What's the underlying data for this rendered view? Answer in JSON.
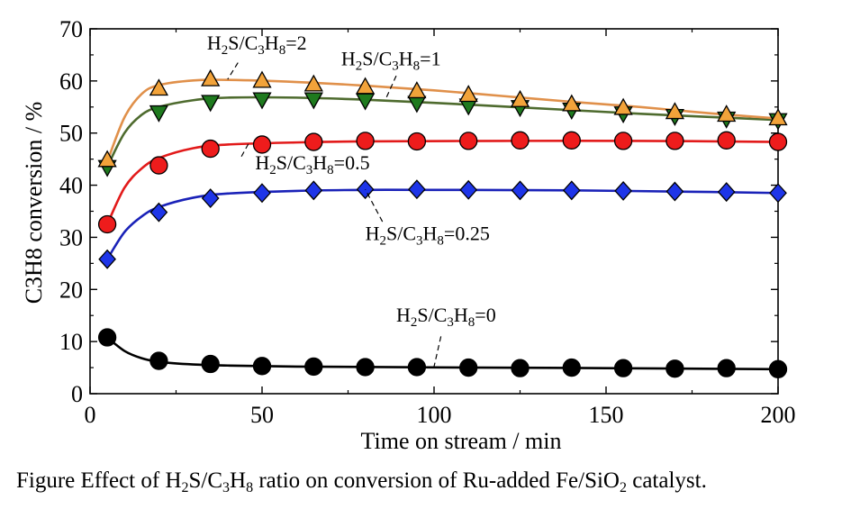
{
  "chart_data": {
    "type": "line",
    "xlabel": "Time on stream / min",
    "ylabel": "C3H8 conversion / %",
    "xlim": [
      0,
      200
    ],
    "ylim": [
      0,
      70
    ],
    "xticks": [
      0,
      50,
      100,
      150,
      200
    ],
    "yticks": [
      0,
      10,
      20,
      30,
      40,
      50,
      60,
      70
    ],
    "grid": false,
    "x": [
      5,
      20,
      35,
      50,
      65,
      80,
      95,
      110,
      125,
      140,
      155,
      170,
      185,
      200
    ],
    "series": [
      {
        "name": "H2S/C3H8=2",
        "label_parts": [
          "H",
          "2",
          "S/C",
          "3",
          "H",
          "8",
          "=2"
        ],
        "marker": "triangle-up",
        "color": "#F2A33A",
        "line_color": "#E0904A",
        "values": [
          44.8,
          58.5,
          60.3,
          60.0,
          59.3,
          58.8,
          58.0,
          57.3,
          56.3,
          55.5,
          54.8,
          54.0,
          53.5,
          52.8
        ],
        "fit": [
          [
            5,
            44.5
          ],
          [
            10,
            53
          ],
          [
            15,
            57.5
          ],
          [
            20,
            59.2
          ],
          [
            30,
            60.1
          ],
          [
            40,
            60.2
          ],
          [
            60,
            59.8
          ],
          [
            80,
            59.1
          ],
          [
            100,
            58.2
          ],
          [
            120,
            57.1
          ],
          [
            140,
            56.0
          ],
          [
            160,
            55.0
          ],
          [
            180,
            53.8
          ],
          [
            200,
            52.8
          ]
        ]
      },
      {
        "name": "H2S/C3H8=1",
        "label_parts": [
          "H",
          "2",
          "S/C",
          "3",
          "H",
          "8",
          "=1"
        ],
        "marker": "triangle-down",
        "color": "#1E7A1E",
        "line_color": "#4E6B2E",
        "values": [
          43.5,
          54.0,
          56.0,
          56.5,
          56.5,
          56.3,
          55.8,
          55.3,
          55.0,
          54.5,
          53.8,
          53.3,
          52.8,
          52.5
        ],
        "fit": [
          [
            5,
            43.5
          ],
          [
            10,
            50
          ],
          [
            15,
            53.5
          ],
          [
            20,
            55.0
          ],
          [
            30,
            56.3
          ],
          [
            40,
            56.8
          ],
          [
            60,
            56.8
          ],
          [
            80,
            56.4
          ],
          [
            100,
            55.8
          ],
          [
            120,
            55.1
          ],
          [
            140,
            54.4
          ],
          [
            160,
            53.7
          ],
          [
            180,
            53.1
          ],
          [
            200,
            52.5
          ]
        ]
      },
      {
        "name": "H2S/C3H8=0.5",
        "label_parts": [
          "H",
          "2",
          "S/C",
          "3",
          "H",
          "8",
          "=0.5"
        ],
        "marker": "circle",
        "color": "#EE1C1C",
        "line_color": "#E21A1A",
        "values": [
          32.5,
          43.8,
          47.0,
          47.8,
          48.3,
          48.5,
          48.4,
          48.5,
          48.6,
          48.6,
          48.5,
          48.5,
          48.6,
          48.3
        ],
        "fit": [
          [
            5,
            32.5
          ],
          [
            10,
            39.5
          ],
          [
            15,
            43.2
          ],
          [
            20,
            45.2
          ],
          [
            30,
            47.1
          ],
          [
            40,
            47.8
          ],
          [
            60,
            48.2
          ],
          [
            80,
            48.4
          ],
          [
            120,
            48.5
          ],
          [
            160,
            48.5
          ],
          [
            200,
            48.3
          ]
        ]
      },
      {
        "name": "H2S/C3H8=0.25",
        "label_parts": [
          "H",
          "2",
          "S/C",
          "3",
          "H",
          "8",
          "=0.25"
        ],
        "marker": "diamond",
        "color": "#1E35E8",
        "line_color": "#1A22B8",
        "values": [
          25.8,
          34.8,
          37.5,
          38.5,
          39.0,
          39.2,
          39.2,
          39.1,
          39.0,
          39.0,
          38.9,
          38.8,
          38.7,
          38.5
        ],
        "fit": [
          [
            5,
            25.8
          ],
          [
            10,
            31.0
          ],
          [
            15,
            34.0
          ],
          [
            20,
            35.8
          ],
          [
            30,
            37.6
          ],
          [
            40,
            38.4
          ],
          [
            60,
            38.9
          ],
          [
            80,
            39.1
          ],
          [
            100,
            39.1
          ],
          [
            140,
            39.0
          ],
          [
            180,
            38.7
          ],
          [
            200,
            38.5
          ]
        ]
      },
      {
        "name": "H2S/C3H8=0",
        "label_parts": [
          "H",
          "2",
          "S/C",
          "3",
          "H",
          "8",
          "=0"
        ],
        "marker": "circle",
        "color": "#000000",
        "line_color": "#000000",
        "values": [
          10.8,
          6.3,
          5.7,
          5.3,
          5.2,
          5.1,
          5.1,
          5.0,
          4.9,
          5.0,
          4.9,
          4.8,
          4.9,
          4.7
        ],
        "fit": [
          [
            5,
            10.8
          ],
          [
            10,
            8.2
          ],
          [
            15,
            6.8
          ],
          [
            20,
            6.1
          ],
          [
            30,
            5.6
          ],
          [
            40,
            5.4
          ],
          [
            60,
            5.2
          ],
          [
            100,
            5.05
          ],
          [
            150,
            4.9
          ],
          [
            200,
            4.7
          ]
        ]
      }
    ],
    "annotations": [
      {
        "series": "H2S/C3H8=2",
        "text_at": [
          34,
          66.0
        ],
        "leader_from": [
          43,
          63.5
        ],
        "leader_to": [
          40,
          60.3
        ]
      },
      {
        "series": "H2S/C3H8=1",
        "text_at": [
          73,
          63.0
        ],
        "leader_from": [
          89,
          61.0
        ],
        "leader_to": [
          86,
          56.6
        ]
      },
      {
        "series": "H2S/C3H8=0.5",
        "text_at": [
          48,
          43.0
        ],
        "leader_from": [
          44,
          45.5
        ],
        "leader_to": [
          46,
          47.9
        ]
      },
      {
        "series": "H2S/C3H8=0.25",
        "text_at": [
          80,
          29.5
        ],
        "leader_from": [
          85,
          33.0
        ],
        "leader_to": [
          80,
          39.2
        ]
      },
      {
        "series": "H2S/C3H8=0",
        "text_at": [
          89,
          13.8
        ],
        "leader_from": [
          102,
          11.0
        ],
        "leader_to": [
          100,
          5.2
        ]
      }
    ]
  },
  "caption": {
    "parts": [
      "Figure Effect of H",
      "2",
      "S/C",
      "3",
      "H",
      "8",
      " ratio on conversion of Ru-added Fe/SiO",
      "2",
      " catalyst."
    ]
  }
}
